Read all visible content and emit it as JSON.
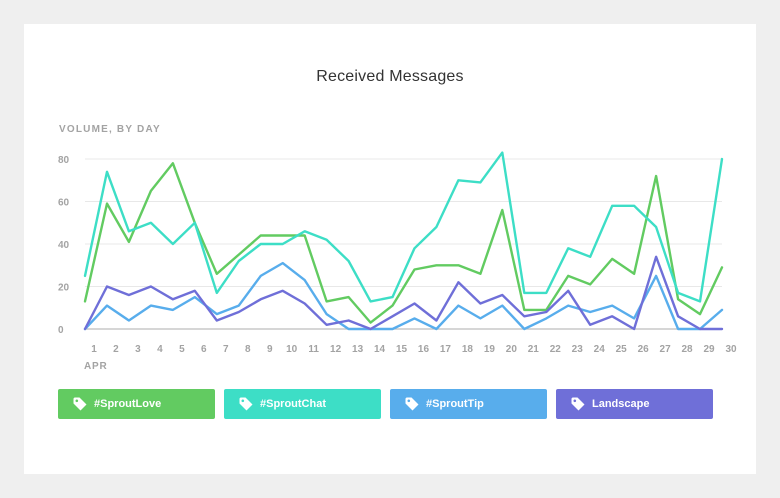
{
  "chart_data": {
    "type": "line",
    "title": "Received Messages",
    "ylabel": "VOLUME, BY DAY",
    "xlabel": "",
    "month_label": "APR",
    "x": [
      1,
      2,
      3,
      4,
      5,
      6,
      7,
      8,
      9,
      10,
      11,
      12,
      13,
      14,
      15,
      16,
      17,
      18,
      19,
      20,
      21,
      22,
      23,
      24,
      25,
      26,
      27,
      28,
      29,
      30
    ],
    "y_ticks": [
      0,
      20,
      40,
      60,
      80
    ],
    "ylim": [
      0,
      80
    ],
    "grid": true,
    "legend_placement": "bottom",
    "series": [
      {
        "name": "#SproutLove",
        "color": "#62cb61",
        "values": [
          13,
          59,
          41,
          65,
          78,
          50,
          26,
          35,
          44,
          44,
          44,
          13,
          15,
          3,
          11,
          28,
          30,
          30,
          26,
          56,
          9,
          9,
          25,
          21,
          33,
          26,
          72,
          14,
          7,
          29
        ]
      },
      {
        "name": "#SproutChat",
        "color": "#3ddec6",
        "values": [
          25,
          74,
          46,
          50,
          40,
          50,
          17,
          32,
          40,
          40,
          46,
          42,
          32,
          13,
          15,
          38,
          48,
          70,
          69,
          83,
          17,
          17,
          38,
          34,
          58,
          58,
          48,
          17,
          13,
          80
        ]
      },
      {
        "name": "#SproutTip",
        "color": "#58adec",
        "values": [
          0,
          11,
          4,
          11,
          9,
          15,
          7,
          11,
          25,
          31,
          23,
          7,
          0,
          0,
          0,
          5,
          0,
          11,
          5,
          11,
          0,
          5,
          11,
          8,
          11,
          5,
          25,
          0,
          0,
          9
        ]
      },
      {
        "name": "Landscape",
        "color": "#6f6fd8",
        "values": [
          0,
          20,
          16,
          20,
          14,
          18,
          4,
          8,
          14,
          18,
          12,
          2,
          4,
          0,
          6,
          12,
          4,
          22,
          12,
          16,
          6,
          8,
          18,
          2,
          6,
          0,
          34,
          6,
          0,
          0
        ]
      }
    ]
  }
}
